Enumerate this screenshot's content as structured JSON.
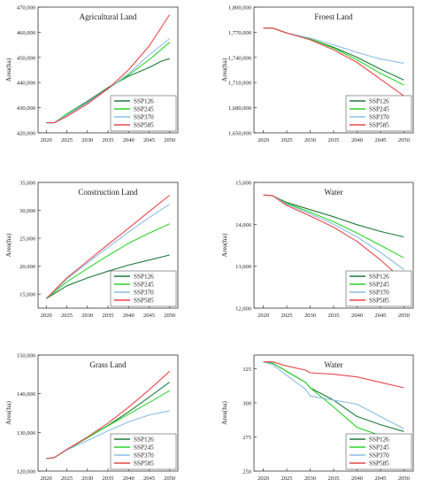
{
  "colors": {
    "SSP126": "#1e7a3a",
    "SSP245": "#2ad42a",
    "SSP370": "#8ebde6",
    "SSP585": "#e8464a"
  },
  "chart_data": [
    {
      "type": "line",
      "title": "Agricultural Land",
      "ylabel": "Area(ha)",
      "xlabel": "",
      "xlim": [
        2018,
        2052
      ],
      "ylim": [
        420000,
        470000
      ],
      "xticks": [
        2020,
        2025,
        2030,
        2035,
        2040,
        2045,
        2050
      ],
      "yticks": [
        "420,000",
        "430,000",
        "440,000",
        "450,000",
        "460,000",
        "470,000"
      ],
      "ytick_values": [
        420000,
        430000,
        440000,
        450000,
        460000,
        470000
      ],
      "legend_position": "bottom-right",
      "grid": false,
      "series": [
        {
          "name": "SSP126",
          "x": [
            2020,
            2022,
            2025,
            2030,
            2035,
            2040,
            2045,
            2048,
            2050
          ],
          "values": [
            424000,
            424000,
            427500,
            432500,
            438000,
            442500,
            446000,
            448500,
            449500
          ]
        },
        {
          "name": "SSP245",
          "x": [
            2020,
            2022,
            2025,
            2030,
            2035,
            2040,
            2045,
            2050
          ],
          "values": [
            424000,
            424000,
            427500,
            432000,
            437500,
            443000,
            449000,
            456000
          ]
        },
        {
          "name": "SSP370",
          "x": [
            2020,
            2022,
            2025,
            2030,
            2035,
            2040,
            2045,
            2050
          ],
          "values": [
            424000,
            424000,
            427000,
            432000,
            437500,
            443500,
            451000,
            457500
          ]
        },
        {
          "name": "SSP585",
          "x": [
            2020,
            2022,
            2025,
            2030,
            2035,
            2040,
            2045,
            2050
          ],
          "values": [
            424000,
            424000,
            426500,
            431500,
            437500,
            445000,
            454500,
            467000
          ]
        }
      ]
    },
    {
      "type": "line",
      "title": "Froest Land",
      "ylabel": "Area(ha)",
      "xlabel": "",
      "xlim": [
        2018,
        2052
      ],
      "ylim": [
        1650000,
        1800000
      ],
      "xticks": [
        2020,
        2025,
        2030,
        2035,
        2040,
        2045,
        2050
      ],
      "yticks": [
        "1,650,000",
        "1,680,000",
        "1,710,000",
        "1,740,000",
        "1,770,000",
        "1,800,000"
      ],
      "ytick_values": [
        1650000,
        1680000,
        1710000,
        1740000,
        1770000,
        1800000
      ],
      "legend_position": "bottom-right",
      "grid": false,
      "series": [
        {
          "name": "SSP126",
          "x": [
            2020,
            2022,
            2025,
            2030,
            2035,
            2040,
            2045,
            2050
          ],
          "values": [
            1775000,
            1775000,
            1769000,
            1762000,
            1752000,
            1740000,
            1726000,
            1713000
          ]
        },
        {
          "name": "SSP245",
          "x": [
            2020,
            2022,
            2025,
            2030,
            2035,
            2040,
            2045,
            2050
          ],
          "values": [
            1775000,
            1775000,
            1769000,
            1762000,
            1751000,
            1737000,
            1721000,
            1707000
          ]
        },
        {
          "name": "SSP370",
          "x": [
            2020,
            2022,
            2025,
            2030,
            2035,
            2040,
            2045,
            2050
          ],
          "values": [
            1775000,
            1775000,
            1769000,
            1763000,
            1755000,
            1746000,
            1738000,
            1733000
          ]
        },
        {
          "name": "SSP585",
          "x": [
            2020,
            2022,
            2025,
            2030,
            2035,
            2040,
            2045,
            2050
          ],
          "values": [
            1775000,
            1775000,
            1769000,
            1761000,
            1749000,
            1734000,
            1714000,
            1694000
          ]
        }
      ]
    },
    {
      "type": "line",
      "title": "Construction Land",
      "ylabel": "Area(ha)",
      "xlabel": "",
      "xlim": [
        2018,
        2052
      ],
      "ylim": [
        12500,
        35000
      ],
      "xticks": [
        2020,
        2025,
        2030,
        2035,
        2040,
        2045,
        2050
      ],
      "yticks": [
        "15,000",
        "20,000",
        "25,000",
        "30,000",
        "35,000"
      ],
      "ytick_values": [
        15000,
        20000,
        25000,
        30000,
        35000
      ],
      "legend_position": "bottom-right",
      "grid": false,
      "series": [
        {
          "name": "SSP126",
          "x": [
            2020,
            2025,
            2030,
            2035,
            2040,
            2045,
            2050
          ],
          "values": [
            14200,
            16500,
            17900,
            19100,
            20200,
            21100,
            22000
          ]
        },
        {
          "name": "SSP245",
          "x": [
            2020,
            2025,
            2030,
            2035,
            2040,
            2045,
            2050
          ],
          "values": [
            14200,
            17200,
            19600,
            21900,
            24100,
            25900,
            27600
          ]
        },
        {
          "name": "SSP370",
          "x": [
            2020,
            2025,
            2030,
            2035,
            2040,
            2045,
            2050
          ],
          "values": [
            14200,
            17700,
            20600,
            23400,
            26100,
            28700,
            31100
          ]
        },
        {
          "name": "SSP585",
          "x": [
            2020,
            2025,
            2030,
            2035,
            2040,
            2045,
            2050
          ],
          "values": [
            14200,
            17900,
            20900,
            23900,
            26800,
            29800,
            32700
          ]
        }
      ]
    },
    {
      "type": "line",
      "title": "Water",
      "ylabel": "Area(ha)",
      "xlabel": "",
      "xlim": [
        2018,
        2052
      ],
      "ylim": [
        12000,
        15000
      ],
      "xticks": [
        2020,
        2025,
        2030,
        2035,
        2040,
        2045,
        2050
      ],
      "yticks": [
        "12,000",
        "13,000",
        "14,000",
        "15,000"
      ],
      "ytick_values": [
        12000,
        13000,
        14000,
        15000
      ],
      "legend_position": "bottom-right",
      "grid": false,
      "series": [
        {
          "name": "SSP126",
          "x": [
            2020,
            2022,
            2025,
            2030,
            2035,
            2040,
            2045,
            2050
          ],
          "values": [
            14700,
            14680,
            14520,
            14350,
            14180,
            13990,
            13830,
            13700
          ]
        },
        {
          "name": "SSP245",
          "x": [
            2020,
            2022,
            2025,
            2030,
            2035,
            2040,
            2045,
            2050
          ],
          "values": [
            14700,
            14680,
            14500,
            14290,
            14060,
            13790,
            13500,
            13200
          ]
        },
        {
          "name": "SSP370",
          "x": [
            2020,
            2022,
            2025,
            2030,
            2035,
            2040,
            2045,
            2050
          ],
          "values": [
            14700,
            14680,
            14480,
            14250,
            14000,
            13700,
            13330,
            12920
          ]
        },
        {
          "name": "SSP585",
          "x": [
            2020,
            2022,
            2025,
            2030,
            2035,
            2040,
            2045,
            2050
          ],
          "values": [
            14700,
            14680,
            14450,
            14200,
            13930,
            13590,
            13150,
            12650
          ]
        }
      ]
    },
    {
      "type": "line",
      "title": "Grass Land",
      "ylabel": "Area(ha)",
      "xlabel": "",
      "xlim": [
        2018,
        2052
      ],
      "ylim": [
        120000,
        150000
      ],
      "xticks": [
        2020,
        2025,
        2030,
        2035,
        2040,
        2045,
        2050
      ],
      "yticks": [
        "120,000",
        "130,000",
        "140,000",
        "150,000"
      ],
      "ytick_values": [
        120000,
        130000,
        140000,
        150000
      ],
      "legend_position": "bottom-right",
      "grid": false,
      "series": [
        {
          "name": "SSP126",
          "x": [
            2020,
            2022,
            2025,
            2030,
            2035,
            2040,
            2045,
            2050
          ],
          "values": [
            123200,
            123500,
            125500,
            128600,
            131800,
            135300,
            139100,
            143000
          ]
        },
        {
          "name": "SSP245",
          "x": [
            2020,
            2022,
            2025,
            2030,
            2035,
            2040,
            2045,
            2050
          ],
          "values": [
            123200,
            123500,
            125500,
            128600,
            131700,
            134700,
            137700,
            140800
          ]
        },
        {
          "name": "SSP370",
          "x": [
            2020,
            2022,
            2025,
            2030,
            2035,
            2040,
            2045,
            2050
          ],
          "values": [
            123200,
            123500,
            125400,
            127900,
            130400,
            132700,
            134500,
            135600
          ]
        },
        {
          "name": "SSP585",
          "x": [
            2020,
            2022,
            2025,
            2030,
            2035,
            2040,
            2045,
            2050
          ],
          "values": [
            123200,
            123500,
            125600,
            128800,
            132400,
            136500,
            141000,
            145800
          ]
        }
      ]
    },
    {
      "type": "line",
      "title": "Water",
      "ylabel": "Area(ha)",
      "xlabel": "",
      "xlim": [
        2018,
        2052
      ],
      "ylim": [
        250,
        335
      ],
      "xticks": [
        2020,
        2025,
        2030,
        2035,
        2040,
        2045,
        2050
      ],
      "yticks": [
        "250",
        "275",
        "300",
        "325"
      ],
      "ytick_values": [
        250,
        275,
        300,
        325
      ],
      "legend_position": "bottom-right",
      "grid": false,
      "series": [
        {
          "name": "SSP126",
          "x": [
            2020,
            2022,
            2025,
            2029,
            2030,
            2035,
            2040,
            2045,
            2050
          ],
          "values": [
            330,
            329,
            323,
            315,
            311,
            302,
            290,
            284,
            279
          ]
        },
        {
          "name": "SSP245",
          "x": [
            2020,
            2022,
            2025,
            2029,
            2030,
            2035,
            2040,
            2045,
            2050
          ],
          "values": [
            330,
            329,
            323,
            315,
            311,
            297,
            282,
            276,
            270
          ]
        },
        {
          "name": "SSP370",
          "x": [
            2020,
            2022,
            2025,
            2029,
            2030,
            2035,
            2040,
            2045,
            2050
          ],
          "values": [
            330,
            328,
            320,
            310,
            305,
            302,
            299,
            290,
            281
          ]
        },
        {
          "name": "SSP585",
          "x": [
            2020,
            2022,
            2025,
            2029,
            2030,
            2035,
            2040,
            2045,
            2050
          ],
          "values": [
            330,
            330,
            327,
            324,
            322,
            321,
            319,
            315,
            311
          ]
        }
      ]
    }
  ]
}
